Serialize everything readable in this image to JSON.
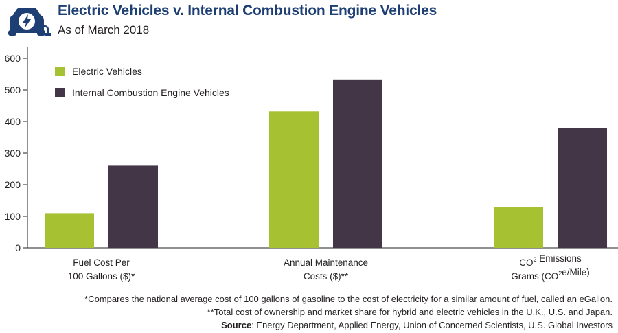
{
  "header": {
    "title": "Electric Vehicles v. Internal Combustion Engine Vehicles",
    "subtitle": "As of March 2018",
    "logo_icon": "electric-car-plug-icon"
  },
  "colors": {
    "ev": "#a6c232",
    "ice": "#433646",
    "title": "#1d3f73",
    "logo": "#1d3f73"
  },
  "chart_data": {
    "type": "bar",
    "title": "Electric Vehicles v. Internal Combustion Engine Vehicles",
    "subtitle": "As of March 2018",
    "categories": [
      {
        "line1": "Fuel Cost Per",
        "line2": "100 Gallons ($)*"
      },
      {
        "line1": "Annual Maintenance",
        "line2": "Costs ($)**"
      },
      {
        "line1": "CO2 Emissions",
        "line2": "Grams (CO2e/Mile)"
      }
    ],
    "series": [
      {
        "name": "Electric Vehicles",
        "values": [
          110,
          432,
          129
        ]
      },
      {
        "name": "Internal Combustion Engine Vehicles",
        "values": [
          260,
          533,
          380
        ]
      }
    ],
    "yticks": [
      0,
      100,
      200,
      300,
      400,
      500,
      600
    ],
    "ylim": [
      0,
      600
    ],
    "grid": false,
    "legend_position": "top-left"
  },
  "footnotes": {
    "note1": "*Compares the national average cost of 100 gallons of gasoline to the cost of electricity for a similar amount of fuel, called an eGallon.",
    "note2": "**Total cost of ownership and market share for hybrid and electric vehicles in the U.K., U.S. and Japan.",
    "source_label": "Source",
    "source_text": ": Energy Department, Applied Energy, Union of Concerned Scientists, U.S. Global Investors"
  }
}
